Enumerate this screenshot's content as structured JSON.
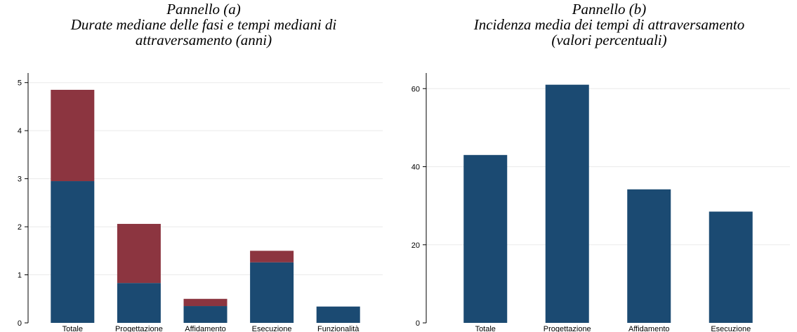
{
  "chart_data": [
    {
      "type": "bar",
      "stacked": true,
      "title_line1": "Pannello (a)",
      "title_line2": "Durate mediane delle fasi e tempi mediani di",
      "title_line3": "attraversamento (anni)",
      "xlabel": "",
      "ylabel": "",
      "categories": [
        "Totale",
        "Progettazione",
        "Affidamento",
        "Esecuzione",
        "Funzionalità"
      ],
      "series": [
        {
          "values": [
            2.95,
            0.83,
            0.35,
            1.26,
            0.34
          ],
          "color": "#1b4a72"
        },
        {
          "values": [
            1.9,
            1.23,
            0.15,
            0.24,
            0
          ],
          "color": "#8c3540"
        }
      ],
      "ylim": [
        0,
        5.2
      ],
      "yticks": [
        0,
        1,
        2,
        3,
        4,
        5
      ],
      "grid": true,
      "legend": "none"
    },
    {
      "type": "bar",
      "title_line1": "Pannello (b)",
      "title_line2": "Incidenza media dei tempi di attraversamento",
      "title_line3": "(valori percentuali)",
      "xlabel": "",
      "ylabel": "",
      "categories": [
        "Totale",
        "Progettazione",
        "Affidamento",
        "Esecuzione"
      ],
      "values": [
        43,
        61,
        34.2,
        28.5
      ],
      "color": "#1b4a72",
      "ylim": [
        0,
        64
      ],
      "yticks": [
        0,
        20,
        40,
        60
      ],
      "grid": true,
      "legend": "none"
    }
  ]
}
